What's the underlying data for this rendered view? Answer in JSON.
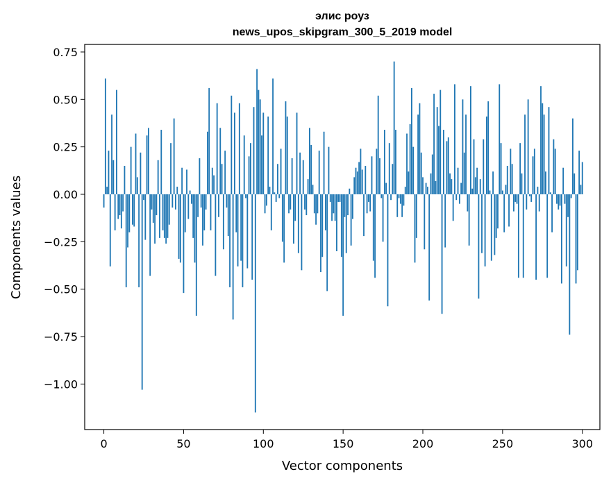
{
  "chart_data": {
    "type": "bar",
    "title": "элис роуз",
    "subtitle": "news_upos_skipgram_300_5_2019 model",
    "xlabel": "Vector components",
    "ylabel": "Components values",
    "xlim": [
      -12,
      311
    ],
    "ylim": [
      -1.24,
      0.79
    ],
    "xticks": [
      0,
      50,
      100,
      150,
      200,
      250,
      300
    ],
    "xtick_labels": [
      "0",
      "50",
      "100",
      "150",
      "200",
      "250",
      "300"
    ],
    "yticks": [
      0.75,
      0.5,
      0.25,
      0.0,
      -0.25,
      -0.5,
      -0.75,
      -1.0
    ],
    "ytick_labels": [
      "0.75",
      "0.50",
      "0.25",
      "0.00",
      "−0.25",
      "−0.50",
      "−0.75",
      "−1.00"
    ],
    "bar_color": "#1f77b4",
    "grid": false,
    "values": [
      -0.07,
      0.61,
      0.04,
      0.23,
      -0.38,
      0.42,
      0.18,
      -0.19,
      0.55,
      -0.13,
      -0.11,
      -0.18,
      -0.09,
      0.15,
      -0.49,
      -0.28,
      -0.2,
      0.25,
      -0.16,
      -0.17,
      0.32,
      0.09,
      -0.49,
      0.22,
      -1.03,
      -0.03,
      -0.24,
      0.31,
      0.35,
      -0.43,
      -0.08,
      -0.15,
      -0.26,
      -0.11,
      0.18,
      -0.23,
      0.34,
      -0.19,
      -0.23,
      -0.26,
      -0.23,
      -0.16,
      0.27,
      -0.07,
      0.4,
      -0.08,
      0.04,
      -0.34,
      -0.36,
      0.14,
      -0.52,
      -0.2,
      0.13,
      -0.13,
      0.02,
      -0.05,
      -0.23,
      -0.36,
      -0.64,
      -0.12,
      0.19,
      -0.07,
      -0.27,
      -0.19,
      -0.08,
      0.33,
      0.56,
      -0.19,
      0.14,
      0.1,
      -0.43,
      0.48,
      -0.12,
      0.35,
      0.16,
      -0.29,
      0.23,
      -0.07,
      -0.22,
      -0.49,
      0.52,
      -0.66,
      0.43,
      -0.2,
      -0.38,
      0.48,
      -0.35,
      -0.49,
      0.31,
      -0.02,
      -0.39,
      0.2,
      0.27,
      -0.45,
      0.46,
      -1.15,
      0.66,
      0.55,
      0.5,
      0.31,
      0.43,
      -0.1,
      -0.06,
      0.41,
      0.04,
      -0.19,
      0.61,
      0.01,
      -0.04,
      0.16,
      -0.02,
      0.24,
      -0.25,
      -0.36,
      0.49,
      0.41,
      -0.1,
      -0.08,
      0.19,
      -0.26,
      -0.14,
      0.43,
      -0.31,
      0.22,
      -0.4,
      0.18,
      -0.08,
      -0.11,
      0.08,
      0.35,
      0.26,
      0.05,
      -0.1,
      -0.16,
      -0.1,
      0.23,
      -0.41,
      -0.33,
      0.33,
      -0.19,
      -0.51,
      0.25,
      -0.04,
      -0.14,
      -0.1,
      -0.14,
      -0.3,
      -0.04,
      -0.04,
      -0.33,
      -0.64,
      -0.12,
      -0.31,
      -0.11,
      0.03,
      -0.27,
      -0.13,
      0.09,
      0.14,
      0.12,
      0.17,
      0.24,
      0.13,
      -0.22,
      0.15,
      -0.1,
      -0.04,
      -0.09,
      0.2,
      -0.35,
      -0.44,
      0.24,
      0.52,
      0.19,
      -0.02,
      -0.25,
      0.34,
      0.06,
      -0.59,
      0.27,
      -0.03,
      0.16,
      0.7,
      0.34,
      -0.12,
      -0.02,
      -0.05,
      -0.12,
      -0.06,
      0.04,
      0.32,
      0.12,
      0.37,
      0.56,
      0.25,
      -0.36,
      -0.23,
      0.42,
      0.48,
      0.22,
      0.09,
      -0.29,
      0.06,
      0.04,
      -0.56,
      0.11,
      0.21,
      0.53,
      0.07,
      0.46,
      0.36,
      0.55,
      -0.63,
      0.34,
      -0.28,
      0.28,
      0.3,
      0.11,
      0.08,
      -0.14,
      0.58,
      -0.03,
      0.14,
      -0.05,
      0.06,
      0.5,
      0.22,
      0.42,
      -0.09,
      -0.27,
      0.57,
      0.03,
      0.29,
      0.09,
      0.14,
      -0.55,
      0.08,
      -0.31,
      0.29,
      -0.38,
      0.41,
      0.49,
      0.02,
      -0.35,
      0.12,
      -0.32,
      -0.23,
      -0.18,
      0.58,
      0.27,
      0.02,
      -0.2,
      0.05,
      0.15,
      -0.17,
      0.24,
      0.16,
      -0.09,
      -0.04,
      -0.05,
      -0.44,
      0.27,
      0.11,
      -0.44,
      0.42,
      -0.08,
      0.5,
      -0.01,
      -0.04,
      0.2,
      0.24,
      -0.45,
      0.04,
      -0.09,
      0.57,
      0.48,
      0.42,
      0.12,
      -0.44,
      0.46,
      0.01,
      -0.2,
      0.29,
      0.24,
      -0.05,
      -0.08,
      -0.06,
      -0.47,
      0.14,
      -0.05,
      -0.38,
      -0.12,
      -0.74,
      -0.02,
      0.4,
      0.11,
      -0.47,
      -0.4,
      0.23,
      0.05,
      0.17
    ]
  }
}
